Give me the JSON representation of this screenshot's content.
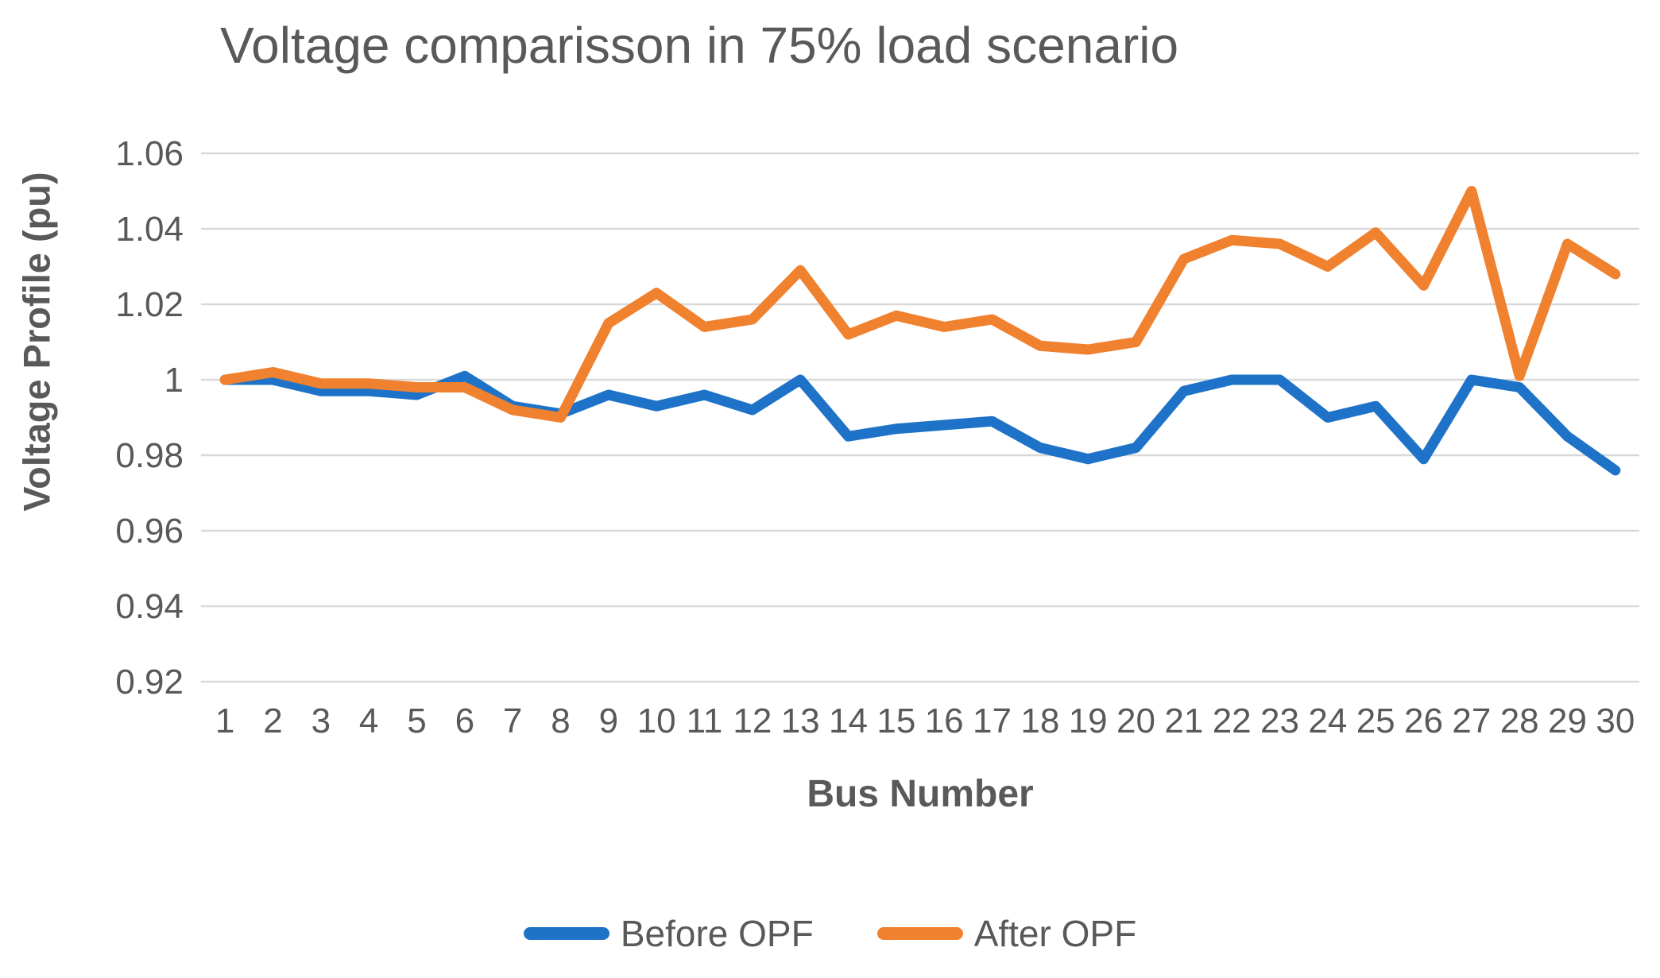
{
  "chart_data": {
    "type": "line",
    "title": "Voltage comparisson in 75% load scenario",
    "xlabel": "Bus Number",
    "ylabel": "Voltage Profile (pu)",
    "categories": [
      1,
      2,
      3,
      4,
      5,
      6,
      7,
      8,
      9,
      10,
      11,
      12,
      13,
      14,
      15,
      16,
      17,
      18,
      19,
      20,
      21,
      22,
      23,
      24,
      25,
      26,
      27,
      28,
      29,
      30
    ],
    "series": [
      {
        "name": "Before OPF",
        "color": "#1E73C8",
        "values": [
          1.0,
          1.0,
          0.997,
          0.997,
          0.996,
          1.001,
          0.993,
          0.991,
          0.996,
          0.993,
          0.996,
          0.992,
          1.0,
          0.985,
          0.987,
          0.988,
          0.989,
          0.982,
          0.979,
          0.982,
          0.997,
          1.0,
          1.0,
          0.99,
          0.993,
          0.979,
          1.0,
          0.998,
          0.985,
          0.976
        ]
      },
      {
        "name": "After OPF",
        "color": "#F0812F",
        "values": [
          1.0,
          1.002,
          0.999,
          0.999,
          0.998,
          0.998,
          0.992,
          0.99,
          1.015,
          1.023,
          1.014,
          1.016,
          1.029,
          1.012,
          1.017,
          1.014,
          1.016,
          1.009,
          1.008,
          1.01,
          1.032,
          1.037,
          1.036,
          1.03,
          1.039,
          1.025,
          1.05,
          1.001,
          1.036,
          1.028
        ]
      }
    ],
    "ylim": [
      0.92,
      1.06
    ],
    "yticks": [
      0.92,
      0.94,
      0.96,
      0.98,
      1.0,
      1.02,
      1.04,
      1.06
    ],
    "ytick_labels": [
      "0.92",
      "0.94",
      "0.96",
      "0.98",
      "1",
      "1.02",
      "1.04",
      "1.06"
    ],
    "grid": true,
    "gridline_color": "#D9D9D9",
    "text_color": "#595959",
    "legend_position": "bottom"
  }
}
